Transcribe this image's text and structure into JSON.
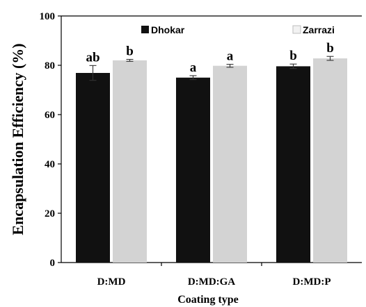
{
  "chart_data": {
    "type": "bar",
    "xlabel": "Coating type",
    "ylabel": "Encapsulation Efficiency (%)",
    "ylim": [
      0,
      100
    ],
    "yticks": [
      "0",
      "20",
      "40",
      "60",
      "80",
      "100"
    ],
    "categories": [
      "D:MD",
      "D:MD:GA",
      "D:MD:P"
    ],
    "legend_position": "top",
    "grid": false,
    "series": [
      {
        "name": "Dhokar",
        "color": "#111111",
        "values": [
          76.9,
          75.0,
          79.6
        ],
        "errors": [
          3.0,
          0.8,
          0.9
        ],
        "annotations": [
          "ab",
          "a",
          "b"
        ]
      },
      {
        "name": "Zarrazi",
        "color": "#d3d3d3",
        "values": [
          82.0,
          79.8,
          82.8
        ],
        "errors": [
          0.4,
          0.6,
          0.8
        ],
        "annotations": [
          "b",
          "a",
          "b"
        ]
      }
    ]
  }
}
